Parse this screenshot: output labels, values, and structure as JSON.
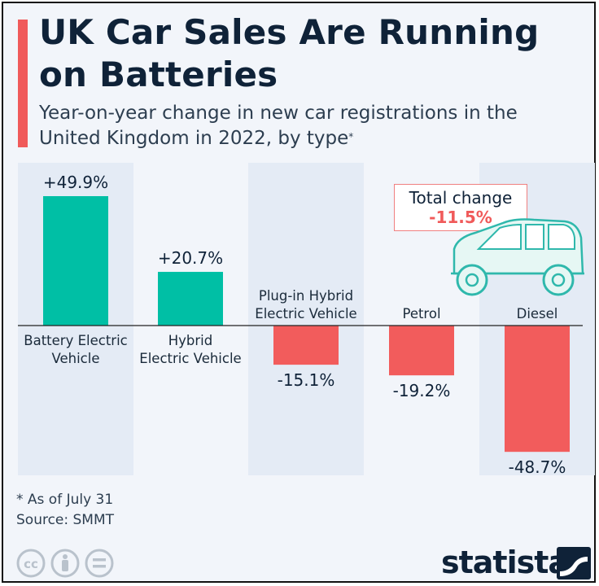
{
  "header": {
    "title": "UK Car Sales Are Running on Batteries",
    "subtitle": "Year-on-year change in new car registrations in the United Kingdom in 2022, by type",
    "subtitle_marker": "*"
  },
  "chart_data": {
    "type": "bar",
    "title": "UK Car Sales Are Running on Batteries",
    "subtitle": "Year-on-year change in new car registrations in the United Kingdom in 2022, by type*",
    "categories": [
      [
        "Battery Electric",
        "Vehicle"
      ],
      [
        "Hybrid",
        "Electric Vehicle"
      ],
      [
        "Plug-in Hybrid",
        "Electric Vehicle"
      ],
      [
        "Petrol"
      ],
      [
        "Diesel"
      ]
    ],
    "values": [
      49.9,
      20.7,
      -15.1,
      -19.2,
      -48.7
    ],
    "data_labels": [
      "+49.9%",
      "+20.7%",
      "-15.1%",
      "-19.2%",
      "-48.7%"
    ],
    "unit": "%",
    "ylim": [
      -60,
      60
    ],
    "grid": false,
    "colors": {
      "positive": "#00bfa5",
      "negative": "#f25c5c",
      "band": "#e4ebf5",
      "axis": "#222222"
    },
    "annotation": {
      "label": "Total change",
      "value": "-11.5%"
    }
  },
  "footer": {
    "footnote": "* As of July 31",
    "source": "Source: SMMT",
    "brand": "statista",
    "icons": [
      "cc-icon",
      "attribution-icon",
      "no-derivatives-icon"
    ]
  }
}
